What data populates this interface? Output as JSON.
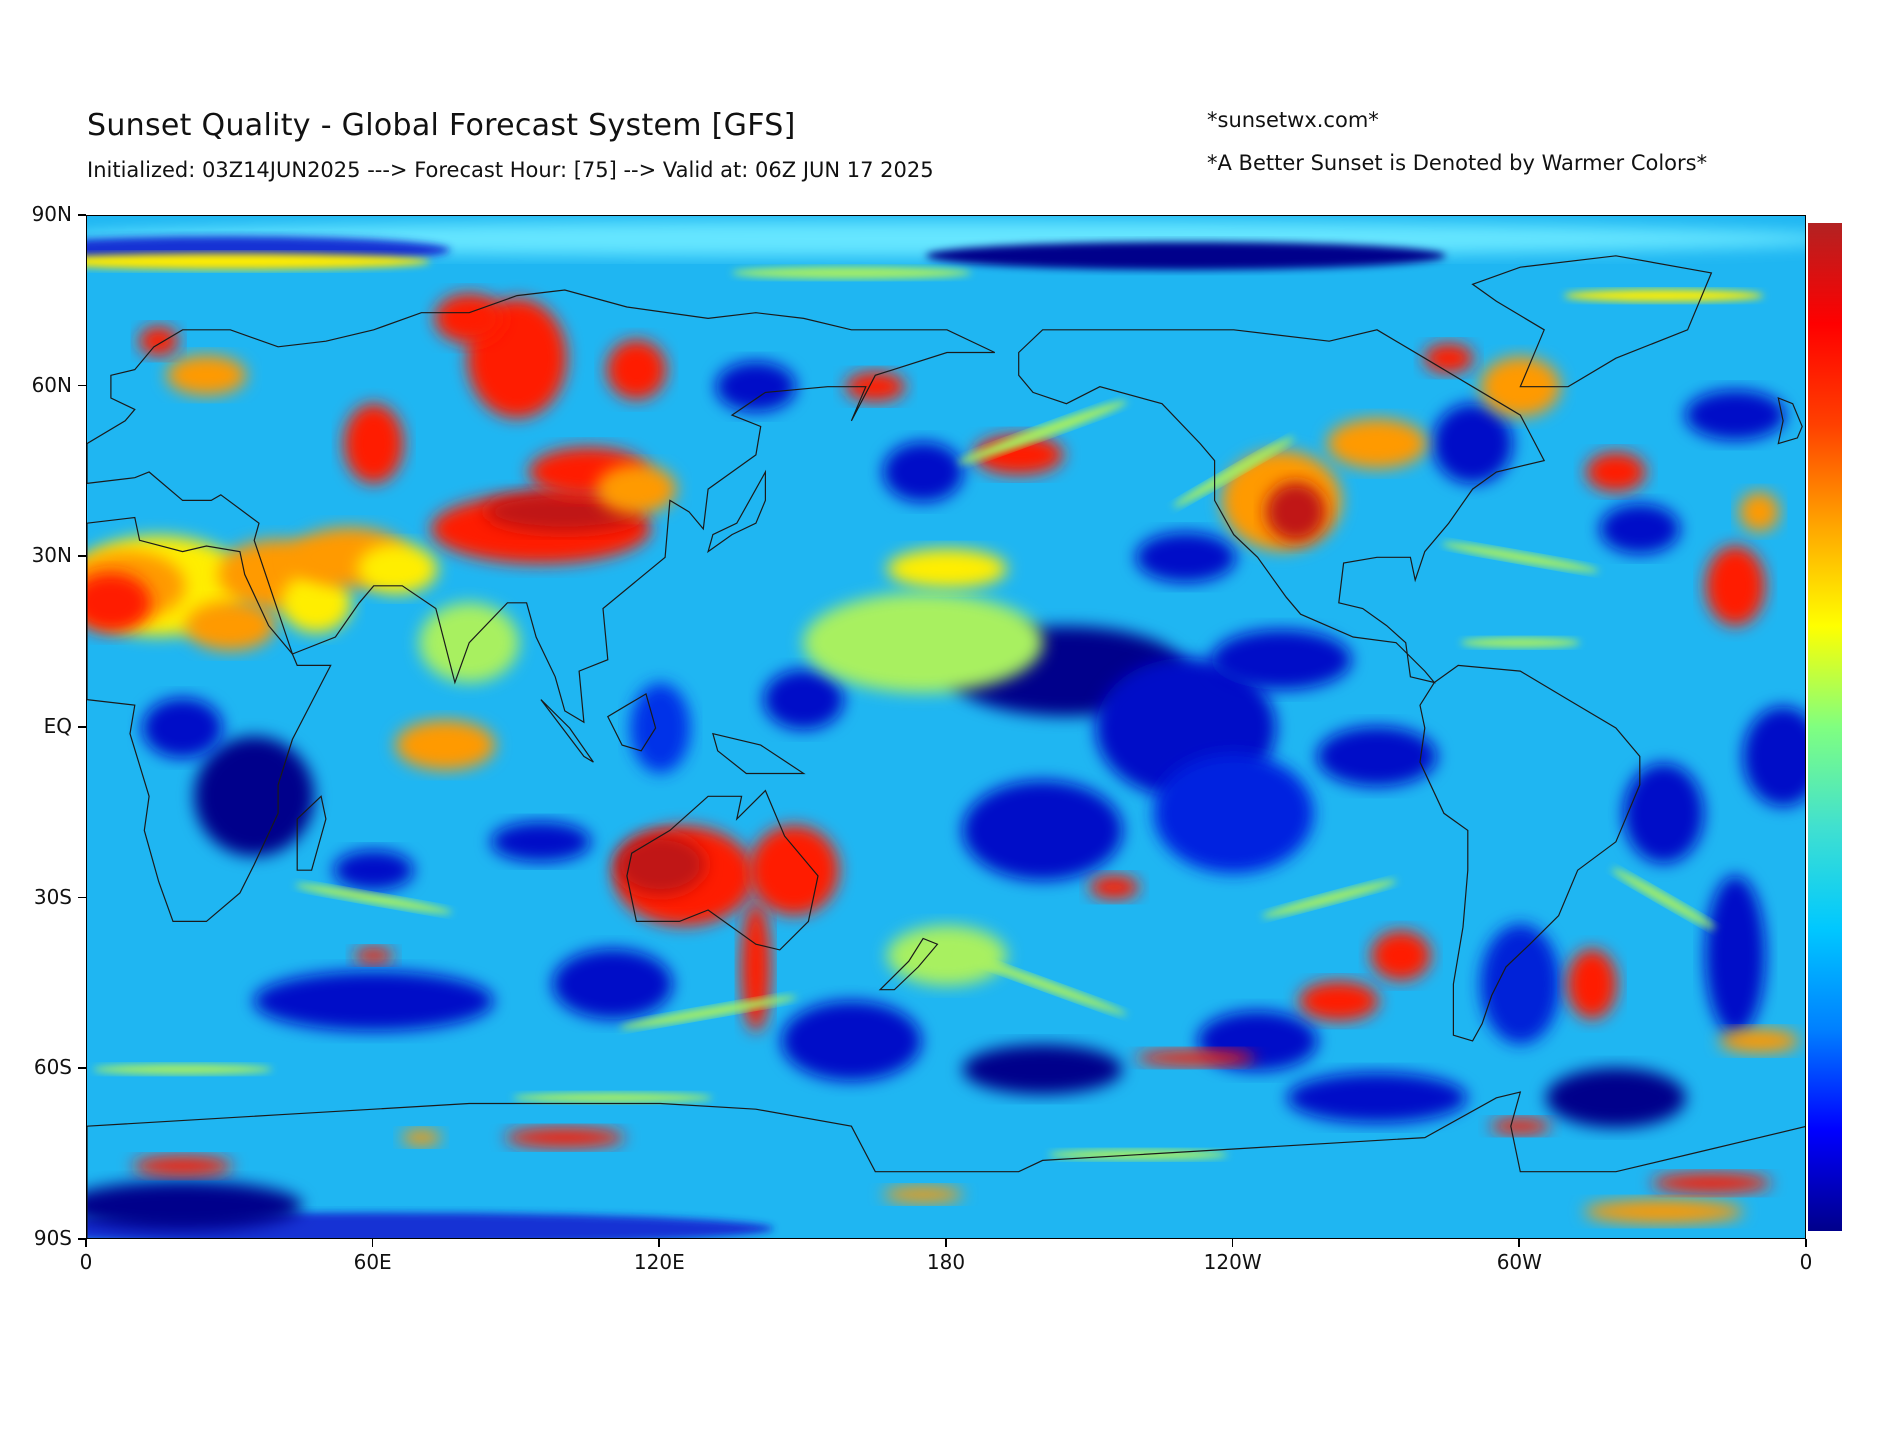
{
  "header": {
    "title": "Sunset Quality - Global Forecast System [GFS]",
    "subtitle": "Initialized: 03Z14JUN2025 ---> Forecast Hour: [75] --> Valid at: 06Z JUN 17 2025",
    "credit": "*sunsetwx.com*",
    "note": "*A Better Sunset is Denoted by Warmer Colors*"
  },
  "map": {
    "projection": "equirectangular",
    "lon_range": [
      0,
      360
    ],
    "lat_range": [
      -90,
      90
    ],
    "y_ticks": [
      "90N",
      "60N",
      "30N",
      "EQ",
      "30S",
      "60S",
      "90S"
    ],
    "x_ticks": [
      "0",
      "60E",
      "120E",
      "180",
      "120W",
      "60W",
      "0"
    ],
    "colorbar": {
      "colors": [
        "#00008b",
        "#0000ff",
        "#0080ff",
        "#00c8ff",
        "#40e0d0",
        "#80ff80",
        "#ffff00",
        "#ffa500",
        "#ff4000",
        "#ff0000",
        "#b22222"
      ],
      "meaning": "warmer colors = better sunset"
    }
  }
}
